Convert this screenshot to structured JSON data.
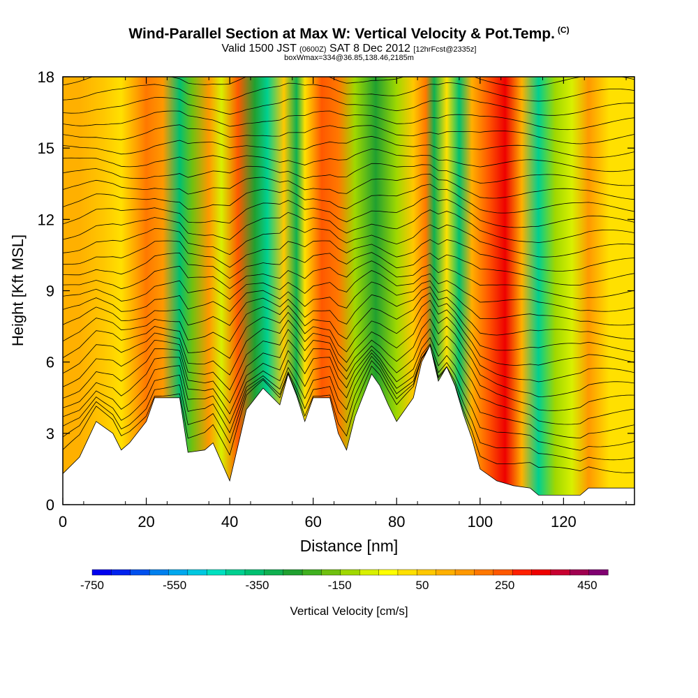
{
  "header": {
    "title": "Wind-Parallel Section at Max W: Vertical Velocity & Pot.Temp.",
    "copyright_mark": "(C)",
    "valid_prefix": "Valid 1500 JST",
    "valid_utc": "(0600Z)",
    "valid_date": "SAT 8 Dec 2012",
    "forecast_info": "[12hrFcst@2335z]",
    "box_info": "boxWmax=334@36.85,138.46,2185m"
  },
  "chart_data": {
    "type": "heatmap",
    "xlabel": "Distance [nm]",
    "ylabel": "Height [Kft MSL]",
    "xlim": [
      0,
      137
    ],
    "ylim": [
      0,
      18
    ],
    "x_ticks": [
      0,
      20,
      40,
      60,
      80,
      100,
      120
    ],
    "y_ticks": [
      0,
      3,
      6,
      9,
      12,
      15,
      18
    ],
    "colorbar": {
      "label": "Vertical Velocity [cm/s]",
      "tick_labels": [
        "-750",
        "-550",
        "-350",
        "-150",
        "50",
        "250",
        "450"
      ],
      "tick_values": [
        -750,
        -550,
        -350,
        -150,
        50,
        250,
        450
      ],
      "min": -750,
      "max": 500,
      "step": 50,
      "colors": [
        "#0000ee",
        "#0022ee",
        "#0050ee",
        "#0080ee",
        "#00a8ee",
        "#00c8e0",
        "#00e0c0",
        "#00d090",
        "#00c070",
        "#10b050",
        "#20a030",
        "#40b020",
        "#70c010",
        "#a0d800",
        "#d8f000",
        "#ffff00",
        "#ffe000",
        "#ffc800",
        "#ffb000",
        "#ff9800",
        "#ff7800",
        "#ff5800",
        "#ff2000",
        "#ee0000",
        "#c80030",
        "#a00050",
        "#800070"
      ]
    },
    "vertical_velocity_cells": [
      {
        "x": 4,
        "w": 180
      },
      {
        "x": 10,
        "w": 120
      },
      {
        "x": 14,
        "w": 60
      },
      {
        "x": 20,
        "w": 280
      },
      {
        "x": 24,
        "w": 200
      },
      {
        "x": 28,
        "w": -330
      },
      {
        "x": 31,
        "w": -150
      },
      {
        "x": 35,
        "w": 200
      },
      {
        "x": 38,
        "w": -50
      },
      {
        "x": 42,
        "w": 334
      },
      {
        "x": 46,
        "w": -220
      },
      {
        "x": 49,
        "w": -400
      },
      {
        "x": 53,
        "w": 100
      },
      {
        "x": 56,
        "w": -280
      },
      {
        "x": 58,
        "w": 60
      },
      {
        "x": 62,
        "w": 300
      },
      {
        "x": 66,
        "w": 250
      },
      {
        "x": 70,
        "w": -80
      },
      {
        "x": 75,
        "w": -250
      },
      {
        "x": 80,
        "w": -60
      },
      {
        "x": 84,
        "w": 120
      },
      {
        "x": 87,
        "w": 260
      },
      {
        "x": 89,
        "w": -300
      },
      {
        "x": 92,
        "w": 50
      },
      {
        "x": 95,
        "w": -350
      },
      {
        "x": 98,
        "w": 150
      },
      {
        "x": 102,
        "w": 330
      },
      {
        "x": 106,
        "w": 420
      },
      {
        "x": 110,
        "w": 160
      },
      {
        "x": 114,
        "w": -380
      },
      {
        "x": 118,
        "w": -100
      },
      {
        "x": 122,
        "w": -50
      },
      {
        "x": 126,
        "w": 220
      },
      {
        "x": 131,
        "w": 80
      }
    ],
    "terrain_height_kft": [
      [
        0,
        1.3
      ],
      [
        4,
        2.0
      ],
      [
        8,
        3.5
      ],
      [
        12,
        3.0
      ],
      [
        14,
        2.3
      ],
      [
        16,
        2.6
      ],
      [
        20,
        3.5
      ],
      [
        22,
        4.5
      ],
      [
        28,
        4.5
      ],
      [
        30,
        2.2
      ],
      [
        34,
        2.3
      ],
      [
        36,
        2.6
      ],
      [
        40,
        1.0
      ],
      [
        42,
        2.5
      ],
      [
        44,
        4.0
      ],
      [
        48,
        4.9
      ],
      [
        52,
        4.2
      ],
      [
        54,
        5.5
      ],
      [
        56,
        4.6
      ],
      [
        58,
        3.5
      ],
      [
        60,
        4.5
      ],
      [
        64,
        4.5
      ],
      [
        66,
        3.0
      ],
      [
        68,
        2.3
      ],
      [
        70,
        3.7
      ],
      [
        74,
        5.5
      ],
      [
        76,
        5.0
      ],
      [
        78,
        4.2
      ],
      [
        80,
        3.5
      ],
      [
        84,
        4.5
      ],
      [
        86,
        6.0
      ],
      [
        88,
        6.7
      ],
      [
        90,
        5.2
      ],
      [
        92,
        5.8
      ],
      [
        94,
        5.0
      ],
      [
        96,
        3.8
      ],
      [
        98,
        2.8
      ],
      [
        100,
        1.5
      ],
      [
        104,
        1.0
      ],
      [
        108,
        0.8
      ],
      [
        112,
        0.7
      ],
      [
        114,
        0.4
      ],
      [
        120,
        0.4
      ],
      [
        124,
        0.4
      ],
      [
        126,
        0.7
      ],
      [
        130,
        0.7
      ],
      [
        137,
        0.7
      ]
    ]
  }
}
